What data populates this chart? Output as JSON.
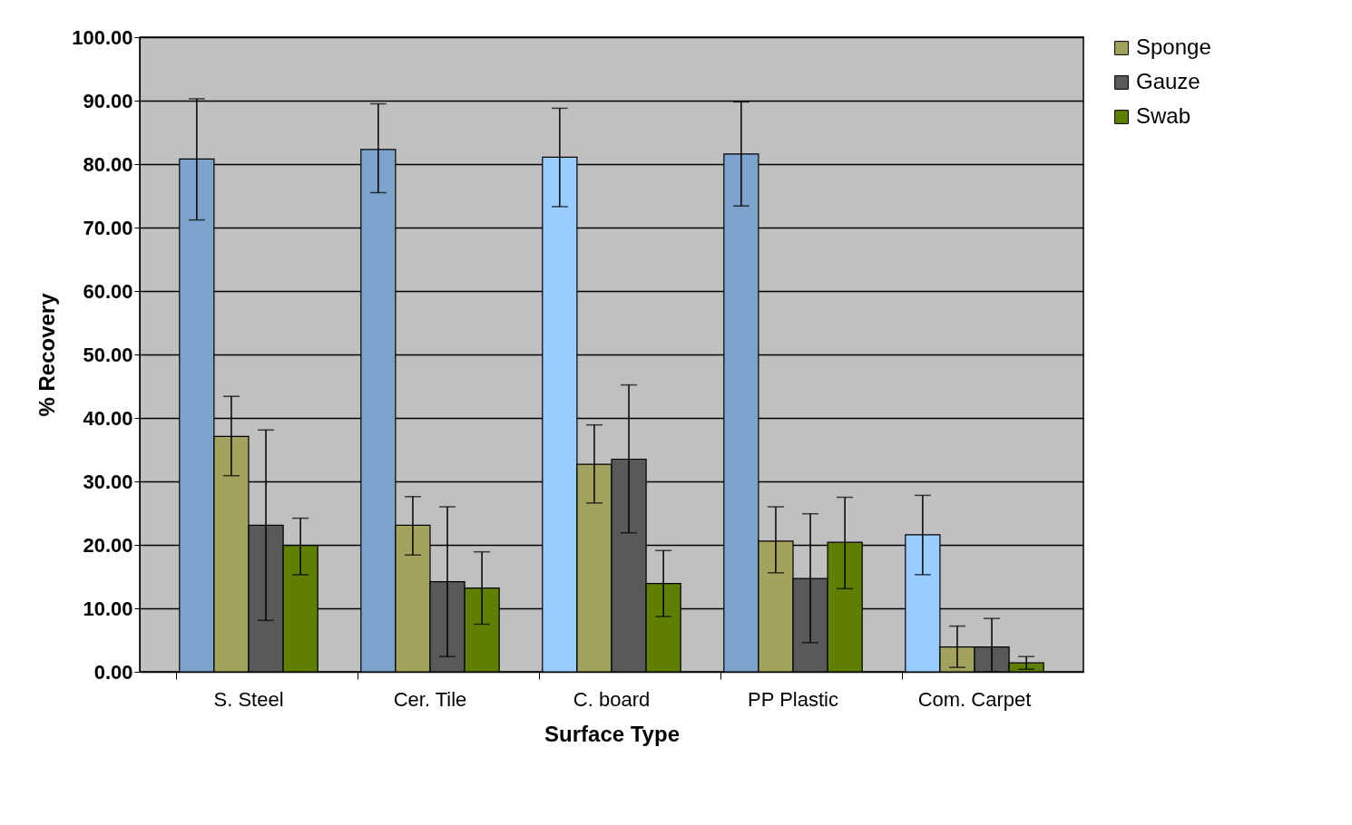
{
  "chart_data": {
    "type": "bar",
    "xlabel": "Surface Type",
    "ylabel": "% Recovery",
    "categories": [
      "S. Steel",
      "Cer. Tile",
      "C. board",
      "PP Plastic",
      "Com. Carpet"
    ],
    "series": [
      {
        "colors": [
          "#7ba3cc",
          "#7ba3cc",
          "#99ccff",
          "#7ba3cc",
          "#99ccff"
        ],
        "values": [
          80.8,
          82.3,
          81.1,
          81.6,
          21.6
        ],
        "errors": [
          [
            71.2,
            90.3
          ],
          [
            75.5,
            89.5
          ],
          [
            73.3,
            88.8
          ],
          [
            73.4,
            89.8
          ],
          [
            15.3,
            27.8
          ]
        ]
      },
      {
        "name": "Sponge",
        "color": "#a3a35f",
        "values": [
          37.1,
          23.1,
          32.7,
          20.6,
          3.9
        ],
        "errors": [
          [
            30.9,
            43.4
          ],
          [
            18.4,
            27.6
          ],
          [
            26.6,
            38.9
          ],
          [
            15.6,
            26.0
          ],
          [
            0.7,
            7.2
          ]
        ]
      },
      {
        "name": "Gauze",
        "color": "#595959",
        "values": [
          23.1,
          14.2,
          33.5,
          14.7,
          3.9
        ],
        "errors": [
          [
            8.1,
            38.1
          ],
          [
            2.4,
            26.0
          ],
          [
            21.9,
            45.2
          ],
          [
            4.6,
            24.9
          ],
          [
            0.0,
            8.4
          ]
        ]
      },
      {
        "name": "Swab",
        "color": "#5f7f00",
        "values": [
          19.9,
          13.2,
          13.9,
          20.4,
          1.4
        ],
        "errors": [
          [
            15.3,
            24.2
          ],
          [
            7.5,
            18.9
          ],
          [
            8.7,
            19.1
          ],
          [
            13.1,
            27.5
          ],
          [
            0.4,
            2.4
          ]
        ]
      }
    ],
    "ylim": [
      0,
      100
    ],
    "yticks": [
      {
        "value": 0,
        "label": "0.00"
      },
      {
        "value": 10,
        "label": "10.00"
      },
      {
        "value": 20,
        "label": "20.00"
      },
      {
        "value": 30,
        "label": "30.00"
      },
      {
        "value": 40,
        "label": "40.00"
      },
      {
        "value": 50,
        "label": "50.00"
      },
      {
        "value": 60,
        "label": "60.00"
      },
      {
        "value": 70,
        "label": "70.00"
      },
      {
        "value": 80,
        "label": "80.00"
      },
      {
        "value": 90,
        "label": "90.00"
      },
      {
        "value": 100,
        "label": "100.00"
      }
    ],
    "grid": "y",
    "legend": "right"
  }
}
